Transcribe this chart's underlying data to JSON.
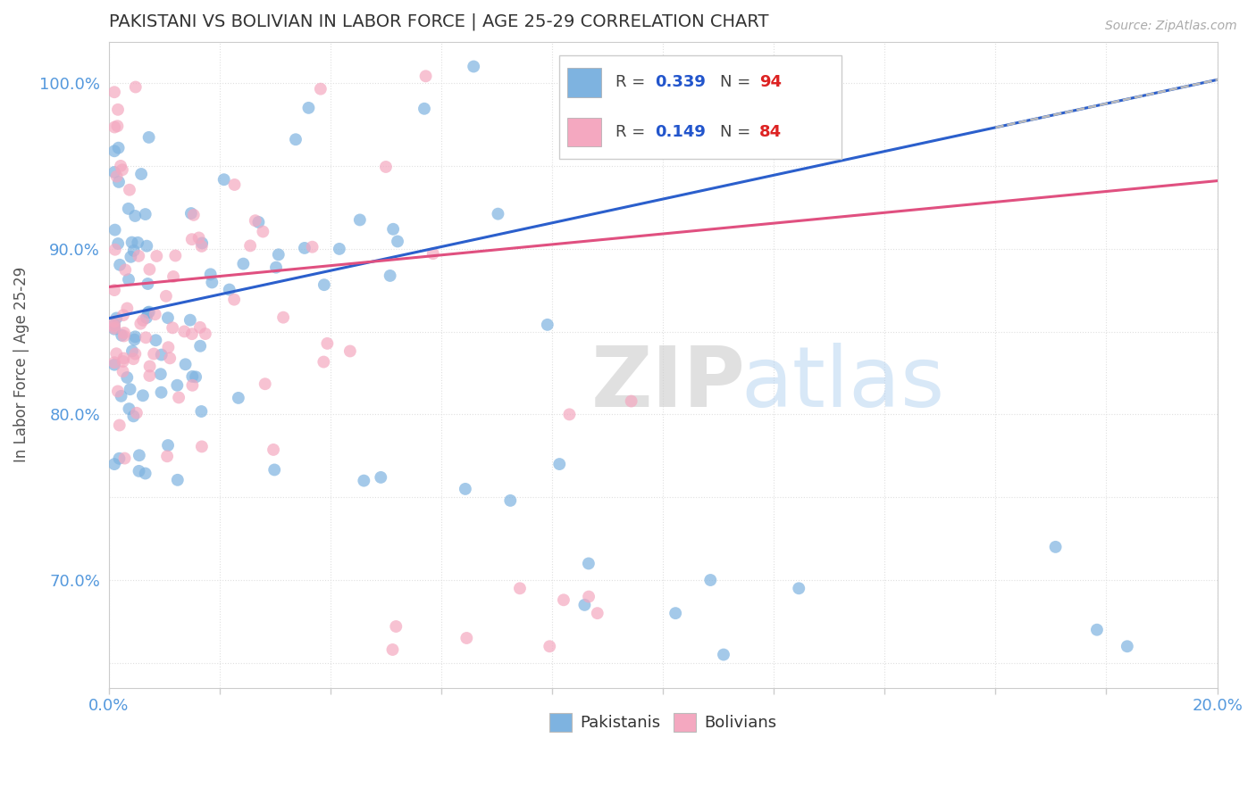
{
  "title": "PAKISTANI VS BOLIVIAN IN LABOR FORCE | AGE 25-29 CORRELATION CHART",
  "source_text": "Source: ZipAtlas.com",
  "ylabel": "In Labor Force | Age 25-29",
  "xlim": [
    0.0,
    0.2
  ],
  "ylim": [
    0.635,
    1.025
  ],
  "xtick_pos": [
    0.0,
    0.02,
    0.04,
    0.06,
    0.08,
    0.1,
    0.12,
    0.14,
    0.16,
    0.18,
    0.2
  ],
  "xticklabels": [
    "0.0%",
    "",
    "",
    "",
    "",
    "",
    "",
    "",
    "",
    "",
    "20.0%"
  ],
  "ytick_pos": [
    0.65,
    0.7,
    0.75,
    0.8,
    0.85,
    0.9,
    0.95,
    1.0
  ],
  "yticklabels": [
    "",
    "70.0%",
    "",
    "80.0%",
    "",
    "90.0%",
    "",
    "100.0%"
  ],
  "blue_color": "#7EB3E0",
  "pink_color": "#F4A8C0",
  "blue_line_color": "#2B5FCC",
  "pink_line_color": "#E05080",
  "dash_line_color": "#BBBBBB",
  "R_blue": 0.339,
  "N_blue": 94,
  "R_pink": 0.149,
  "N_pink": 84,
  "blue_intercept": 0.858,
  "blue_slope": 0.72,
  "pink_intercept": 0.877,
  "pink_slope": 0.32,
  "watermark_zip_color": "#DDDDDD",
  "watermark_atlas_color": "#AACCEE",
  "grid_color": "#E0E0E0",
  "tick_color": "#CCCCCC",
  "axis_label_color": "#5599DD",
  "ylabel_color": "#555555",
  "title_color": "#333333",
  "source_color": "#AAAAAA",
  "legend_text_color": "#333333",
  "legend_R_color": "#2255CC",
  "legend_N_color": "#DD2222"
}
